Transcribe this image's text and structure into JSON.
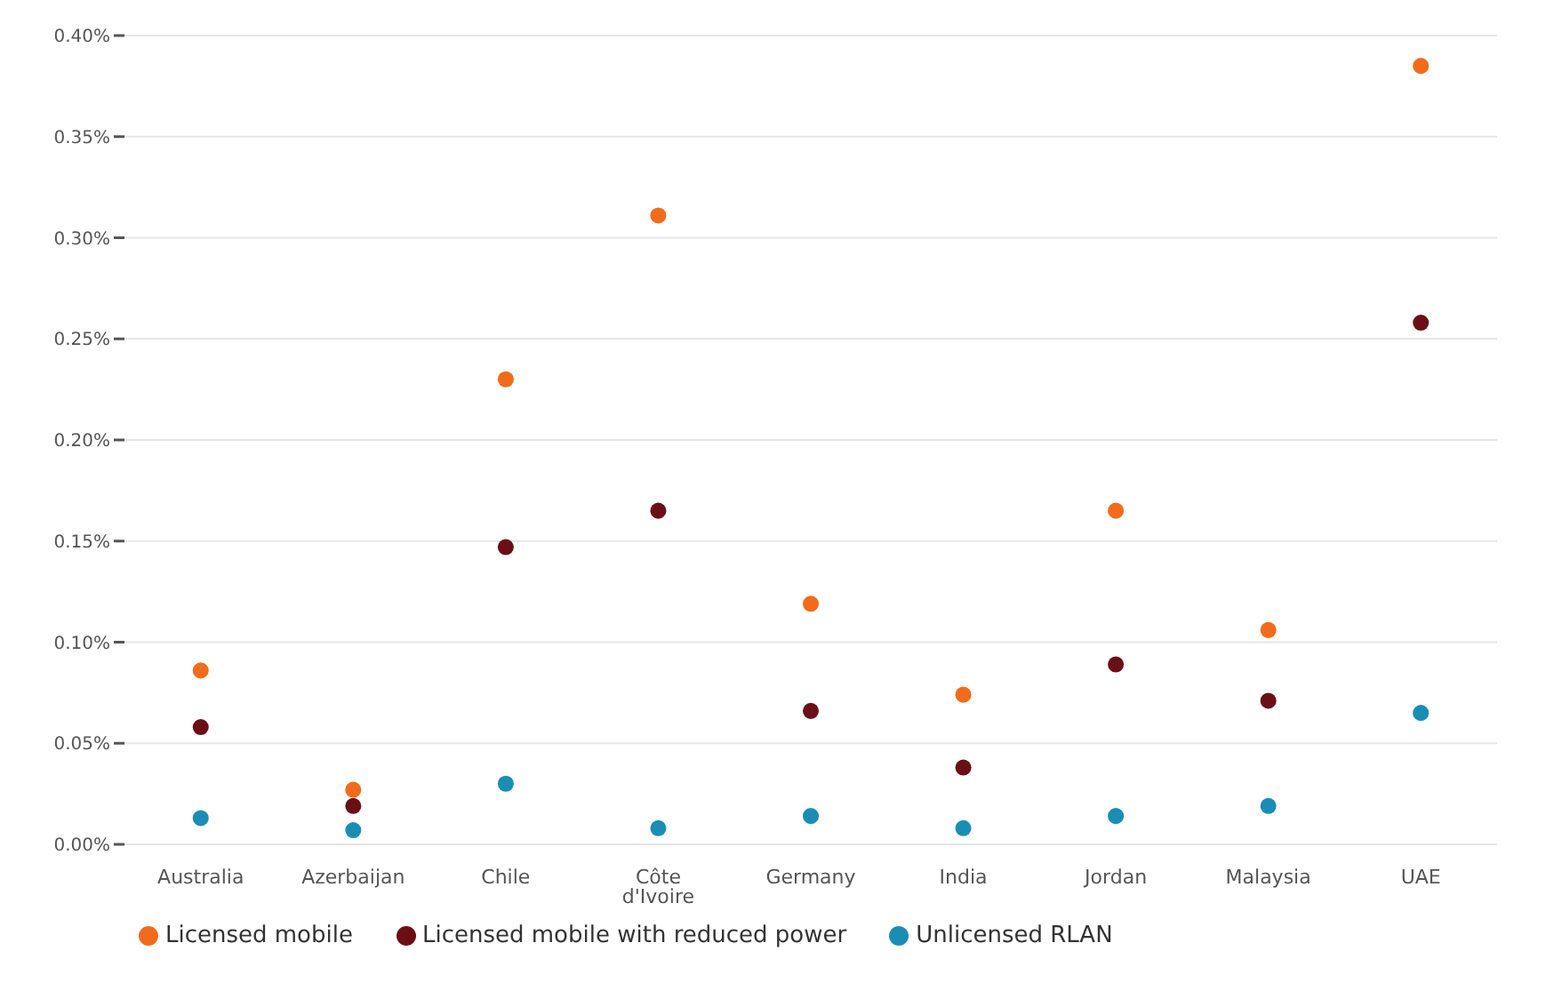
{
  "chart_data": {
    "type": "scatter",
    "categories": [
      "Australia",
      "Azerbaijan",
      "Chile",
      "Côte d'Ivoire",
      "Germany",
      "India",
      "Jordan",
      "Malaysia",
      "UAE"
    ],
    "series": [
      {
        "name": "Licensed mobile",
        "color": "#f26b1d",
        "values": [
          0.086,
          0.027,
          0.23,
          0.311,
          0.119,
          0.074,
          0.165,
          0.106,
          0.385
        ]
      },
      {
        "name": "Unlicensed RLAN",
        "color": "#1a8db5",
        "values": [
          0.013,
          0.007,
          0.03,
          0.008,
          0.014,
          0.008,
          0.014,
          0.019,
          0.065
        ]
      },
      {
        "name": "Licensed mobile with reduced power",
        "color": "#6b0f16",
        "values": [
          0.058,
          0.019,
          0.147,
          0.165,
          0.066,
          0.038,
          0.089,
          0.071,
          0.258
        ]
      }
    ],
    "ylim": [
      0,
      0.4
    ],
    "yticks": [
      {
        "value": 0,
        "label": "0.00%"
      },
      {
        "value": 0.05,
        "label": "0.05%"
      },
      {
        "value": 0.1,
        "label": "0.10%"
      },
      {
        "value": 0.15,
        "label": "0.15%"
      },
      {
        "value": 0.2,
        "label": "0.20%"
      },
      {
        "value": 0.25,
        "label": "0.25%"
      },
      {
        "value": 0.3,
        "label": "0.30%"
      },
      {
        "value": 0.35,
        "label": "0.35%"
      },
      {
        "value": 0.4,
        "label": "0.40%"
      }
    ],
    "grid": "y",
    "legend": "bottom",
    "marker": "circle"
  }
}
